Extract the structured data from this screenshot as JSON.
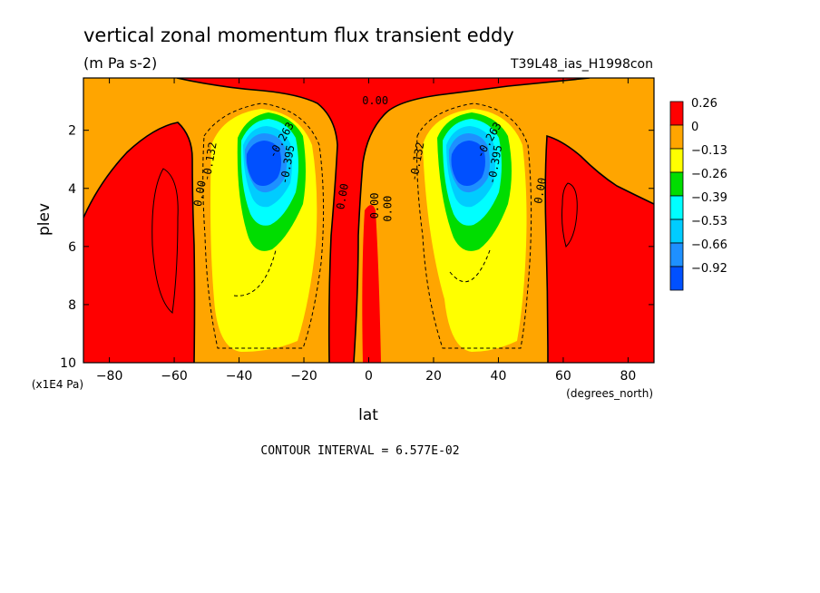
{
  "chart_data": {
    "type": "heatmap",
    "title": "vertical zonal momentum flux transient eddy",
    "units": "(m Pa s-2)",
    "run_label": "T39L48_ias_H1998con",
    "xlabel": "lat",
    "x_units": "(degrees_north)",
    "ylabel": "plev",
    "y_units": "(x1E4 Pa)",
    "xlim": [
      -88,
      88
    ],
    "ylim": [
      10,
      0.2
    ],
    "x_ticks": [
      -80,
      -60,
      -40,
      -20,
      0,
      20,
      40,
      60,
      80
    ],
    "y_ticks": [
      2,
      4,
      6,
      8,
      10
    ],
    "footnote": "CONTOUR INTERVAL = 6.577E-02",
    "colorbar": {
      "placement": "right",
      "levels": [
        "0.26",
        "0",
        "−0.13",
        "−0.26",
        "−0.39",
        "−0.53",
        "−0.66",
        "−0.92"
      ],
      "colors": [
        "#ff0000",
        "#ffa500",
        "#ffff00",
        "#00dd00",
        "#00ffff",
        "#00ccff",
        "#1e90ff",
        "#0050ff"
      ]
    },
    "contour_labels": [
      "0.00",
      "-0.132",
      "-0.263",
      "-0.395",
      "0.00",
      "0.00",
      "0.00",
      "0.00",
      "-0.132",
      "-0.263",
      "-0.395",
      "0.00"
    ],
    "features": [
      {
        "name": "southern minimum",
        "lat": -34,
        "plev": 3.1,
        "value": -0.92
      },
      {
        "name": "northern minimum",
        "lat": 32,
        "plev": 3.1,
        "value": -0.92
      },
      {
        "name": "southern positive maximum",
        "lat": -62,
        "plev": 5.5,
        "value": 0.26
      },
      {
        "name": "northern positive maximum",
        "lat": 66,
        "plev": 5.0,
        "value": 0.26
      }
    ]
  }
}
